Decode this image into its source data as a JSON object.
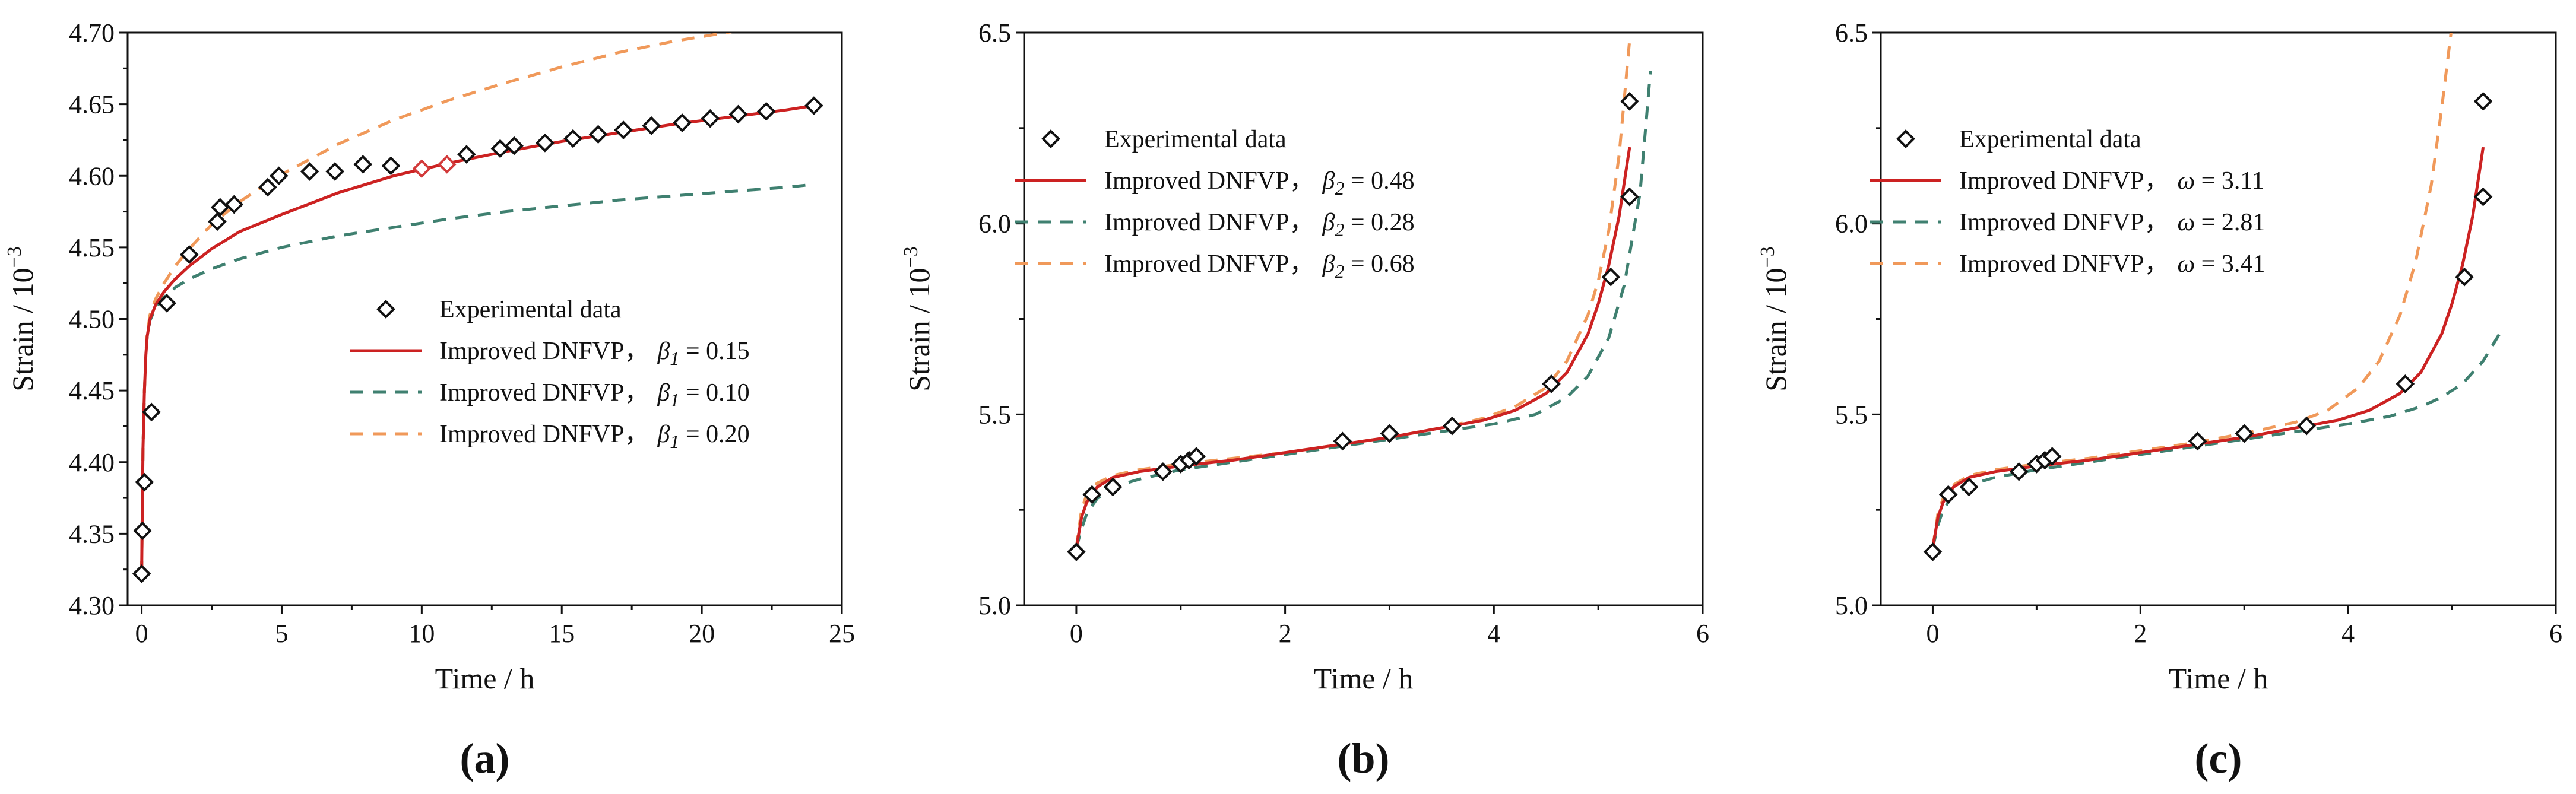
{
  "colors": {
    "experimental": "#111111",
    "experimental_highlight": "#d23a3a",
    "improved_best": "#cc2222",
    "improved_low": "#3f8070",
    "improved_high": "#f0995a"
  },
  "chart_data": [
    {
      "type": "scatter",
      "panel_label": "(a)",
      "xlabel": "Time / h",
      "ylabel": "Strain / 10",
      "ylabel_exponent": "−3",
      "xlim": [
        -0.5,
        25
      ],
      "ylim": [
        4.3,
        4.7
      ],
      "xticks": [
        0,
        5,
        10,
        15,
        20,
        25
      ],
      "yticks": [
        4.3,
        4.35,
        4.4,
        4.45,
        4.5,
        4.55,
        4.6,
        4.65,
        4.7
      ],
      "ytick_labels": [
        "4.30",
        "4.35",
        "4.40",
        "4.45",
        "4.50",
        "4.55",
        "4.60",
        "4.65",
        "4.70"
      ],
      "xtick_labels": [
        "0",
        "5",
        "10",
        "15",
        "20",
        "25"
      ],
      "legend_position": "center-right",
      "legend": [
        {
          "text": "Experimental data",
          "param": "",
          "value": "",
          "style": "marker"
        },
        {
          "text": "Improved DNFVP，",
          "param": "β",
          "sub": "1",
          "value": " = 0.15",
          "style": "best"
        },
        {
          "text": "Improved DNFVP，",
          "param": "β",
          "sub": "1",
          "value": " = 0.10",
          "style": "low"
        },
        {
          "text": "Improved DNFVP，",
          "param": "β",
          "sub": "1",
          "value": " = 0.20",
          "style": "high"
        }
      ],
      "experimental": [
        {
          "x": 0.0,
          "y": 4.322
        },
        {
          "x": 0.03,
          "y": 4.352
        },
        {
          "x": 0.1,
          "y": 4.386
        },
        {
          "x": 0.35,
          "y": 4.435
        },
        {
          "x": 0.9,
          "y": 4.511
        },
        {
          "x": 1.7,
          "y": 4.545
        },
        {
          "x": 2.7,
          "y": 4.568
        },
        {
          "x": 2.8,
          "y": 4.578
        },
        {
          "x": 3.3,
          "y": 4.58
        },
        {
          "x": 4.5,
          "y": 4.592
        },
        {
          "x": 4.9,
          "y": 4.6
        },
        {
          "x": 6.0,
          "y": 4.603
        },
        {
          "x": 6.9,
          "y": 4.603
        },
        {
          "x": 7.9,
          "y": 4.608
        },
        {
          "x": 8.9,
          "y": 4.607
        },
        {
          "x": 10.0,
          "y": 4.605,
          "highlight": true
        },
        {
          "x": 10.9,
          "y": 4.608,
          "highlight": true
        },
        {
          "x": 11.6,
          "y": 4.615
        },
        {
          "x": 12.8,
          "y": 4.619
        },
        {
          "x": 13.3,
          "y": 4.621
        },
        {
          "x": 14.4,
          "y": 4.623
        },
        {
          "x": 15.4,
          "y": 4.626
        },
        {
          "x": 16.3,
          "y": 4.629
        },
        {
          "x": 17.2,
          "y": 4.632
        },
        {
          "x": 18.2,
          "y": 4.635
        },
        {
          "x": 19.3,
          "y": 4.637
        },
        {
          "x": 20.3,
          "y": 4.64
        },
        {
          "x": 21.3,
          "y": 4.643
        },
        {
          "x": 22.3,
          "y": 4.645
        },
        {
          "x": 24.0,
          "y": 4.649
        }
      ],
      "series": [
        {
          "name": "β1 = 0.15",
          "style": "best",
          "x": [
            0,
            0.02,
            0.05,
            0.1,
            0.15,
            0.2,
            0.3,
            0.5,
            0.8,
            1.2,
            1.7,
            2.5,
            3.5,
            5,
            7,
            9,
            11,
            13,
            15,
            17,
            19,
            21,
            23,
            24
          ],
          "y": [
            4.322,
            4.36,
            4.41,
            4.45,
            4.475,
            4.488,
            4.5,
            4.51,
            4.519,
            4.528,
            4.537,
            4.549,
            4.561,
            4.573,
            4.588,
            4.6,
            4.609,
            4.617,
            4.624,
            4.63,
            4.636,
            4.641,
            4.646,
            4.649
          ]
        },
        {
          "name": "β1 = 0.10",
          "style": "low",
          "x": [
            0,
            0.02,
            0.05,
            0.1,
            0.15,
            0.2,
            0.3,
            0.5,
            0.8,
            1.2,
            1.7,
            2.5,
            3.5,
            5,
            7,
            9,
            11,
            13,
            15,
            17,
            19,
            21,
            23,
            24
          ],
          "y": [
            4.322,
            4.36,
            4.41,
            4.45,
            4.475,
            4.488,
            4.499,
            4.508,
            4.515,
            4.522,
            4.528,
            4.535,
            4.542,
            4.55,
            4.558,
            4.564,
            4.57,
            4.575,
            4.579,
            4.583,
            4.586,
            4.589,
            4.592,
            4.594
          ]
        },
        {
          "name": "β1 = 0.20",
          "style": "high",
          "x": [
            0,
            0.02,
            0.05,
            0.1,
            0.15,
            0.2,
            0.3,
            0.5,
            0.8,
            1.2,
            1.7,
            2.5,
            3.5,
            5,
            7,
            9,
            11,
            13,
            15,
            17,
            19,
            21.5
          ],
          "y": [
            4.322,
            4.36,
            4.41,
            4.45,
            4.476,
            4.49,
            4.503,
            4.514,
            4.525,
            4.537,
            4.549,
            4.566,
            4.582,
            4.601,
            4.622,
            4.639,
            4.653,
            4.665,
            4.676,
            4.686,
            4.694,
            4.702
          ]
        }
      ]
    },
    {
      "type": "scatter",
      "panel_label": "(b)",
      "xlabel": "Time / h",
      "ylabel": "Strain / 10",
      "ylabel_exponent": "−3",
      "xlim": [
        -0.5,
        6
      ],
      "ylim": [
        5.0,
        6.5
      ],
      "xticks": [
        0,
        2,
        4,
        6
      ],
      "yticks": [
        5.0,
        5.5,
        6.0,
        6.5
      ],
      "ytick_labels": [
        "5.0",
        "5.5",
        "6.0",
        "6.5"
      ],
      "xtick_labels": [
        "0",
        "2",
        "4",
        "6"
      ],
      "legend_position": "top-left",
      "legend": [
        {
          "text": "Experimental data",
          "param": "",
          "value": "",
          "style": "marker"
        },
        {
          "text": "Improved DNFVP，",
          "param": "β",
          "sub": "2",
          "value": " = 0.48",
          "style": "best"
        },
        {
          "text": "Improved DNFVP，",
          "param": "β",
          "sub": "2",
          "value": " = 0.28",
          "style": "low"
        },
        {
          "text": "Improved DNFVP，",
          "param": "β",
          "sub": "2",
          "value": " = 0.68",
          "style": "high"
        }
      ],
      "experimental": [
        {
          "x": 0.0,
          "y": 5.14
        },
        {
          "x": 0.15,
          "y": 5.29
        },
        {
          "x": 0.35,
          "y": 5.31
        },
        {
          "x": 0.83,
          "y": 5.35
        },
        {
          "x": 1.0,
          "y": 5.37
        },
        {
          "x": 1.08,
          "y": 5.38
        },
        {
          "x": 1.15,
          "y": 5.39
        },
        {
          "x": 2.55,
          "y": 5.43
        },
        {
          "x": 3.0,
          "y": 5.45
        },
        {
          "x": 3.6,
          "y": 5.47
        },
        {
          "x": 4.55,
          "y": 5.58
        },
        {
          "x": 5.12,
          "y": 5.86
        },
        {
          "x": 5.3,
          "y": 6.07
        },
        {
          "x": 5.3,
          "y": 6.32
        }
      ],
      "series": [
        {
          "name": "β2 = 0.48",
          "style": "best",
          "x": [
            0,
            0.05,
            0.1,
            0.2,
            0.35,
            0.6,
            1.0,
            1.5,
            2.0,
            2.5,
            3.0,
            3.5,
            3.9,
            4.2,
            4.5,
            4.7,
            4.9,
            5.0,
            5.1,
            5.2,
            5.3
          ],
          "y": [
            5.15,
            5.23,
            5.27,
            5.31,
            5.335,
            5.35,
            5.365,
            5.38,
            5.4,
            5.42,
            5.44,
            5.465,
            5.485,
            5.51,
            5.555,
            5.61,
            5.71,
            5.79,
            5.89,
            6.02,
            6.2
          ]
        },
        {
          "name": "β2 = 0.28",
          "style": "low",
          "x": [
            0,
            0.05,
            0.1,
            0.2,
            0.35,
            0.6,
            1.0,
            1.5,
            2.0,
            2.5,
            3.0,
            3.5,
            4.0,
            4.4,
            4.7,
            4.9,
            5.1,
            5.25,
            5.4,
            5.5
          ],
          "y": [
            5.15,
            5.2,
            5.24,
            5.28,
            5.31,
            5.33,
            5.355,
            5.375,
            5.395,
            5.415,
            5.435,
            5.455,
            5.475,
            5.5,
            5.545,
            5.6,
            5.7,
            5.84,
            6.08,
            6.4
          ]
        },
        {
          "name": "β2 = 0.68",
          "style": "high",
          "x": [
            0,
            0.05,
            0.1,
            0.2,
            0.35,
            0.6,
            1.0,
            1.5,
            2.0,
            2.5,
            3.0,
            3.5,
            3.9,
            4.2,
            4.5,
            4.7,
            4.9,
            5.0,
            5.1,
            5.2,
            5.3
          ],
          "y": [
            5.15,
            5.25,
            5.29,
            5.32,
            5.34,
            5.355,
            5.37,
            5.385,
            5.4,
            5.42,
            5.44,
            5.465,
            5.49,
            5.52,
            5.57,
            5.64,
            5.76,
            5.85,
            5.98,
            6.18,
            6.48
          ]
        }
      ]
    },
    {
      "type": "scatter",
      "panel_label": "(c)",
      "xlabel": "Time / h",
      "ylabel": "Strain / 10",
      "ylabel_exponent": "−3",
      "xlim": [
        -0.5,
        6
      ],
      "ylim": [
        5.0,
        6.5
      ],
      "xticks": [
        0,
        2,
        4,
        6
      ],
      "yticks": [
        5.0,
        5.5,
        6.0,
        6.5
      ],
      "ytick_labels": [
        "5.0",
        "5.5",
        "6.0",
        "6.5"
      ],
      "xtick_labels": [
        "0",
        "2",
        "4",
        "6"
      ],
      "legend_position": "top-left",
      "legend": [
        {
          "text": "Experimental data",
          "param": "",
          "value": "",
          "style": "marker"
        },
        {
          "text": "Improved DNFVP，",
          "param": "ω",
          "sub": "",
          "value": " = 3.11",
          "style": "best"
        },
        {
          "text": "Improved DNFVP，",
          "param": "ω",
          "sub": "",
          "value": " = 2.81",
          "style": "low"
        },
        {
          "text": "Improved DNFVP，",
          "param": "ω",
          "sub": "",
          "value": " = 3.41",
          "style": "high"
        }
      ],
      "experimental": [
        {
          "x": 0.0,
          "y": 5.14
        },
        {
          "x": 0.15,
          "y": 5.29
        },
        {
          "x": 0.35,
          "y": 5.31
        },
        {
          "x": 0.83,
          "y": 5.35
        },
        {
          "x": 1.0,
          "y": 5.37
        },
        {
          "x": 1.08,
          "y": 5.38
        },
        {
          "x": 1.15,
          "y": 5.39
        },
        {
          "x": 2.55,
          "y": 5.43
        },
        {
          "x": 3.0,
          "y": 5.45
        },
        {
          "x": 3.6,
          "y": 5.47
        },
        {
          "x": 4.55,
          "y": 5.58
        },
        {
          "x": 5.12,
          "y": 5.86
        },
        {
          "x": 5.3,
          "y": 6.07
        },
        {
          "x": 5.3,
          "y": 6.32
        }
      ],
      "series": [
        {
          "name": "ω = 3.11",
          "style": "best",
          "x": [
            0,
            0.05,
            0.1,
            0.2,
            0.35,
            0.6,
            1.0,
            1.5,
            2.0,
            2.5,
            3.0,
            3.5,
            3.9,
            4.2,
            4.5,
            4.7,
            4.9,
            5.0,
            5.1,
            5.2,
            5.3
          ],
          "y": [
            5.15,
            5.23,
            5.27,
            5.31,
            5.335,
            5.35,
            5.365,
            5.38,
            5.4,
            5.42,
            5.44,
            5.465,
            5.485,
            5.51,
            5.555,
            5.61,
            5.71,
            5.79,
            5.89,
            6.02,
            6.2
          ]
        },
        {
          "name": "ω = 2.81",
          "style": "low",
          "x": [
            0,
            0.05,
            0.1,
            0.2,
            0.35,
            0.6,
            1.0,
            1.5,
            2.0,
            2.5,
            3.0,
            3.5,
            4.0,
            4.4,
            4.7,
            4.9,
            5.1,
            5.3,
            5.5
          ],
          "y": [
            5.15,
            5.21,
            5.25,
            5.29,
            5.315,
            5.335,
            5.355,
            5.375,
            5.395,
            5.415,
            5.435,
            5.455,
            5.475,
            5.495,
            5.52,
            5.545,
            5.58,
            5.64,
            5.73
          ]
        },
        {
          "name": "ω = 3.41",
          "style": "high",
          "x": [
            0,
            0.05,
            0.1,
            0.2,
            0.35,
            0.6,
            1.0,
            1.5,
            2.0,
            2.5,
            3.0,
            3.5,
            3.8,
            4.1,
            4.3,
            4.5,
            4.65,
            4.8,
            4.9,
            5.0
          ],
          "y": [
            5.15,
            5.24,
            5.28,
            5.315,
            5.34,
            5.355,
            5.37,
            5.385,
            5.405,
            5.425,
            5.45,
            5.48,
            5.51,
            5.57,
            5.64,
            5.76,
            5.9,
            6.1,
            6.3,
            6.52
          ]
        }
      ]
    }
  ]
}
